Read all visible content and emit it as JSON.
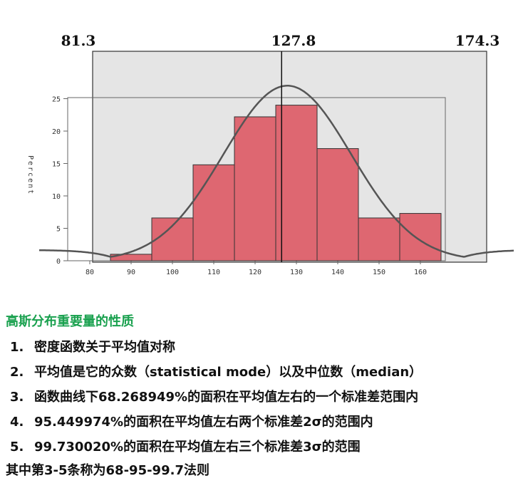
{
  "chart_data": {
    "type": "bar",
    "title": "",
    "xlabel": "",
    "ylabel": "Percent",
    "xlim": [
      78,
      165
    ],
    "ylim": [
      0,
      25
    ],
    "x_ticks": [
      80,
      90,
      100,
      110,
      120,
      130,
      140,
      150,
      160
    ],
    "y_ticks": [
      0,
      5,
      10,
      15,
      20,
      25
    ],
    "bins": [
      {
        "start": 85,
        "end": 95,
        "value": 1
      },
      {
        "start": 95,
        "end": 105,
        "value": 6.6
      },
      {
        "start": 105,
        "end": 115,
        "value": 14.8
      },
      {
        "start": 115,
        "end": 125,
        "value": 22.2
      },
      {
        "start": 125,
        "end": 135,
        "value": 24
      },
      {
        "start": 135,
        "end": 145,
        "value": 17.3
      },
      {
        "start": 145,
        "end": 155,
        "value": 6.6
      },
      {
        "start": 155,
        "end": 165,
        "value": 7.3
      }
    ],
    "bar_color": "#de6771",
    "curve": {
      "mean": 127.8,
      "sd": 15.5,
      "peak": 27
    },
    "markers": [
      {
        "label": "81.3",
        "value": 81.3
      },
      {
        "label": "127.8",
        "value": 127.8
      },
      {
        "label": "174.3",
        "value": 174.3
      }
    ]
  },
  "text": {
    "heading": "高斯分布重要量的性质",
    "items": [
      {
        "num": "1.",
        "text": "密度函数关于平均值对称"
      },
      {
        "num": "2.",
        "text": "平均值是它的众数（statistical mode）以及中位数（median）"
      },
      {
        "num": "3.",
        "text": "函数曲线下68.268949%的面积在平均值左右的一个标准差范围内"
      },
      {
        "num": "4.",
        "text": "95.449974%的面积在平均值左右两个标准差2σ的范围内"
      },
      {
        "num": "5.",
        "text": "99.730020%的面积在平均值左右三个标准差3σ的范围"
      }
    ],
    "footer": "其中第3-5条称为68-95-99.7法则"
  }
}
